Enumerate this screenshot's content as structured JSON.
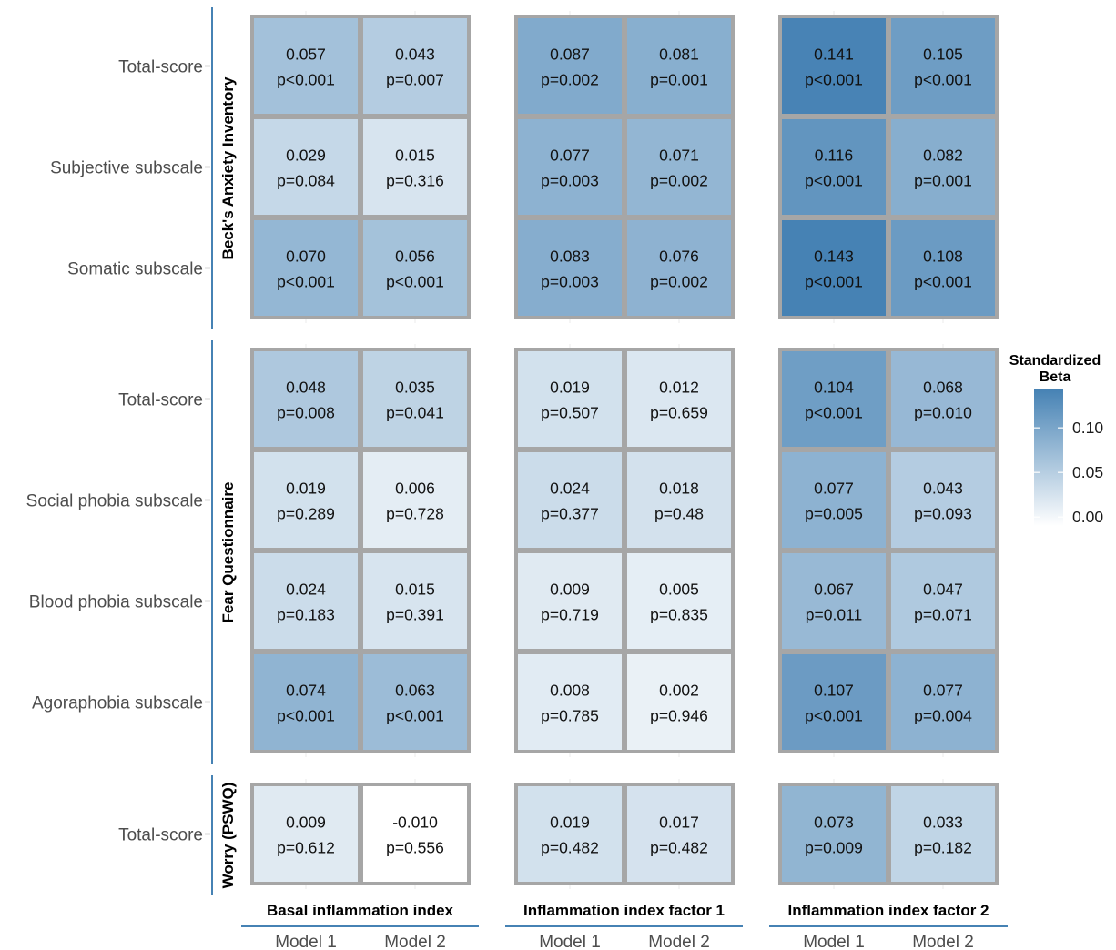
{
  "chart_data": {
    "type": "heatmap",
    "legend": {
      "title_line1": "Standardized",
      "title_line2": "Beta",
      "ticks": [
        {
          "value": 0.1,
          "label": "0.10"
        },
        {
          "value": 0.05,
          "label": "0.05"
        },
        {
          "value": 0.0,
          "label": "0.00"
        }
      ],
      "min": -0.01,
      "max": 0.143,
      "low_color": "#ffffff",
      "high_color": "#4682b4"
    },
    "column_groups": [
      {
        "title": "Basal inflammation index",
        "columns": [
          "Model 1",
          "Model 2"
        ]
      },
      {
        "title": "Inflammation index factor 1",
        "columns": [
          "Model 1",
          "Model 2"
        ]
      },
      {
        "title": "Inflammation index factor 2",
        "columns": [
          "Model 1",
          "Model 2"
        ]
      }
    ],
    "row_groups": [
      {
        "title": "Beck's Anxiety Inventory",
        "rows": [
          {
            "label": "Total-score",
            "cells": [
              {
                "beta": "0.057",
                "p": "p<0.001"
              },
              {
                "beta": "0.043",
                "p": "p=0.007"
              },
              {
                "beta": "0.087",
                "p": "p=0.002"
              },
              {
                "beta": "0.081",
                "p": "p=0.001"
              },
              {
                "beta": "0.141",
                "p": "p<0.001"
              },
              {
                "beta": "0.105",
                "p": "p<0.001"
              }
            ]
          },
          {
            "label": "Subjective subscale",
            "cells": [
              {
                "beta": "0.029",
                "p": "p=0.084"
              },
              {
                "beta": "0.015",
                "p": "p=0.316"
              },
              {
                "beta": "0.077",
                "p": "p=0.003"
              },
              {
                "beta": "0.071",
                "p": "p=0.002"
              },
              {
                "beta": "0.116",
                "p": "p<0.001"
              },
              {
                "beta": "0.082",
                "p": "p=0.001"
              }
            ]
          },
          {
            "label": "Somatic subscale",
            "cells": [
              {
                "beta": "0.070",
                "p": "p<0.001"
              },
              {
                "beta": "0.056",
                "p": "p<0.001"
              },
              {
                "beta": "0.083",
                "p": "p=0.003"
              },
              {
                "beta": "0.076",
                "p": "p=0.002"
              },
              {
                "beta": "0.143",
                "p": "p<0.001"
              },
              {
                "beta": "0.108",
                "p": "p<0.001"
              }
            ]
          }
        ]
      },
      {
        "title": "Fear Questionnaire",
        "rows": [
          {
            "label": "Total-score",
            "cells": [
              {
                "beta": "0.048",
                "p": "p=0.008"
              },
              {
                "beta": "0.035",
                "p": "p=0.041"
              },
              {
                "beta": "0.019",
                "p": "p=0.507"
              },
              {
                "beta": "0.012",
                "p": "p=0.659"
              },
              {
                "beta": "0.104",
                "p": "p<0.001"
              },
              {
                "beta": "0.068",
                "p": "p=0.010"
              }
            ]
          },
          {
            "label": "Social phobia subscale",
            "cells": [
              {
                "beta": "0.019",
                "p": "p=0.289"
              },
              {
                "beta": "0.006",
                "p": "p=0.728"
              },
              {
                "beta": "0.024",
                "p": "p=0.377"
              },
              {
                "beta": "0.018",
                "p": "p=0.48"
              },
              {
                "beta": "0.077",
                "p": "p=0.005"
              },
              {
                "beta": "0.043",
                "p": "p=0.093"
              }
            ]
          },
          {
            "label": "Blood phobia subscale",
            "cells": [
              {
                "beta": "0.024",
                "p": "p=0.183"
              },
              {
                "beta": "0.015",
                "p": "p=0.391"
              },
              {
                "beta": "0.009",
                "p": "p=0.719"
              },
              {
                "beta": "0.005",
                "p": "p=0.835"
              },
              {
                "beta": "0.067",
                "p": "p=0.011"
              },
              {
                "beta": "0.047",
                "p": "p=0.071"
              }
            ]
          },
          {
            "label": "Agoraphobia subscale",
            "cells": [
              {
                "beta": "0.074",
                "p": "p<0.001"
              },
              {
                "beta": "0.063",
                "p": "p<0.001"
              },
              {
                "beta": "0.008",
                "p": "p=0.785"
              },
              {
                "beta": "0.002",
                "p": "p=0.946"
              },
              {
                "beta": "0.107",
                "p": "p<0.001"
              },
              {
                "beta": "0.077",
                "p": "p=0.004"
              }
            ]
          }
        ]
      },
      {
        "title": "Worry (PSWQ)",
        "rows": [
          {
            "label": "Total-score",
            "cells": [
              {
                "beta": "0.009",
                "p": "p=0.612"
              },
              {
                "beta": "-0.010",
                "p": "p=0.556"
              },
              {
                "beta": "0.019",
                "p": "p=0.482"
              },
              {
                "beta": "0.017",
                "p": "p=0.482"
              },
              {
                "beta": "0.073",
                "p": "p=0.009"
              },
              {
                "beta": "0.033",
                "p": "p=0.182"
              }
            ]
          }
        ]
      }
    ],
    "colors": {
      "panel_border": "#a6a6a6",
      "grid_line": "#ebebeb",
      "strip_line": "#4682b4"
    }
  }
}
